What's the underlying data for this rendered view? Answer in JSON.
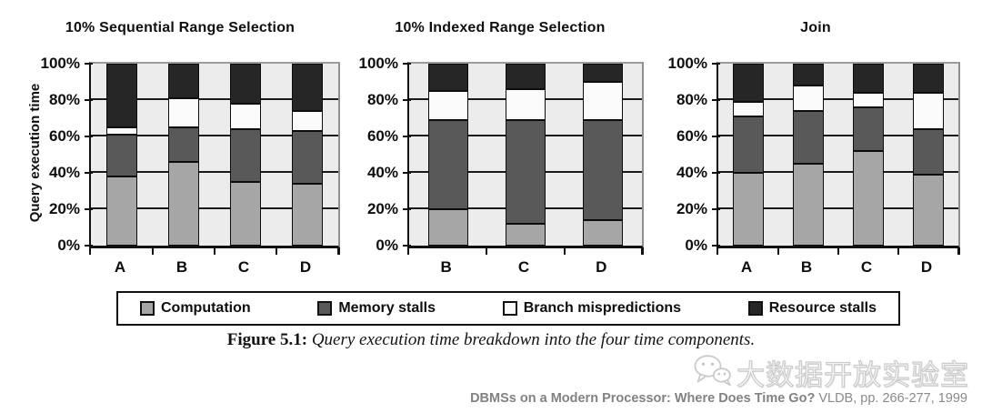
{
  "caption": {
    "prefix": "Figure 5.1:",
    "text": "Query execution time breakdown into the four time components."
  },
  "footer": {
    "bold": "DBMSs on a Modern Processor: Where Does Time Go?",
    "rest": "VLDB, pp. 266-277, 1999"
  },
  "watermark": {
    "text": "大数据开放实验室",
    "icon": "wechat-icon"
  },
  "colors": {
    "computation": "#a6a6a6",
    "memory_stalls": "#595959",
    "branch_mispredictions": "#fbfbfb",
    "resource_stalls": "#262626",
    "plot_background": "#ececec",
    "gridline": "#1a1a1a"
  },
  "chart_data": [
    {
      "type": "bar",
      "subtype": "stacked-100-percent",
      "title": "10% Sequential Range Selection",
      "ylabel": "Query execution time",
      "categories": [
        "A",
        "B",
        "C",
        "D"
      ],
      "yticks": [
        "0%",
        "20%",
        "40%",
        "60%",
        "80%",
        "100%"
      ],
      "ylim": [
        0,
        100
      ],
      "grid": "horizontal",
      "legend_position": "bottom-shared",
      "series": [
        {
          "name": "Computation",
          "color": "#a6a6a6",
          "values": [
            38,
            46,
            35,
            34
          ]
        },
        {
          "name": "Memory stalls",
          "color": "#595959",
          "values": [
            23,
            19,
            29,
            29
          ]
        },
        {
          "name": "Branch mispredictions",
          "color": "#fbfbfb",
          "values": [
            4,
            16,
            14,
            11
          ]
        },
        {
          "name": "Resource stalls",
          "color": "#262626",
          "values": [
            35,
            19,
            22,
            26
          ]
        }
      ]
    },
    {
      "type": "bar",
      "subtype": "stacked-100-percent",
      "title": "10% Indexed Range Selection",
      "categories": [
        "B",
        "C",
        "D"
      ],
      "yticks": [
        "0%",
        "20%",
        "40%",
        "60%",
        "80%",
        "100%"
      ],
      "ylim": [
        0,
        100
      ],
      "grid": "horizontal",
      "legend_position": "bottom-shared",
      "series": [
        {
          "name": "Computation",
          "color": "#a6a6a6",
          "values": [
            20,
            12,
            14
          ]
        },
        {
          "name": "Memory stalls",
          "color": "#595959",
          "values": [
            49,
            57,
            55
          ]
        },
        {
          "name": "Branch mispredictions",
          "color": "#fbfbfb",
          "values": [
            16,
            17,
            21
          ]
        },
        {
          "name": "Resource stalls",
          "color": "#262626",
          "values": [
            15,
            14,
            10
          ]
        }
      ]
    },
    {
      "type": "bar",
      "subtype": "stacked-100-percent",
      "title": "Join",
      "categories": [
        "A",
        "B",
        "C",
        "D"
      ],
      "yticks": [
        "0%",
        "20%",
        "40%",
        "60%",
        "80%",
        "100%"
      ],
      "ylim": [
        0,
        100
      ],
      "grid": "horizontal",
      "legend_position": "bottom-shared",
      "series": [
        {
          "name": "Computation",
          "color": "#a6a6a6",
          "values": [
            40,
            45,
            52,
            39
          ]
        },
        {
          "name": "Memory stalls",
          "color": "#595959",
          "values": [
            31,
            29,
            24,
            25
          ]
        },
        {
          "name": "Branch mispredictions",
          "color": "#fbfbfb",
          "values": [
            8,
            14,
            8,
            20
          ]
        },
        {
          "name": "Resource stalls",
          "color": "#262626",
          "values": [
            21,
            12,
            16,
            16
          ]
        }
      ]
    }
  ]
}
